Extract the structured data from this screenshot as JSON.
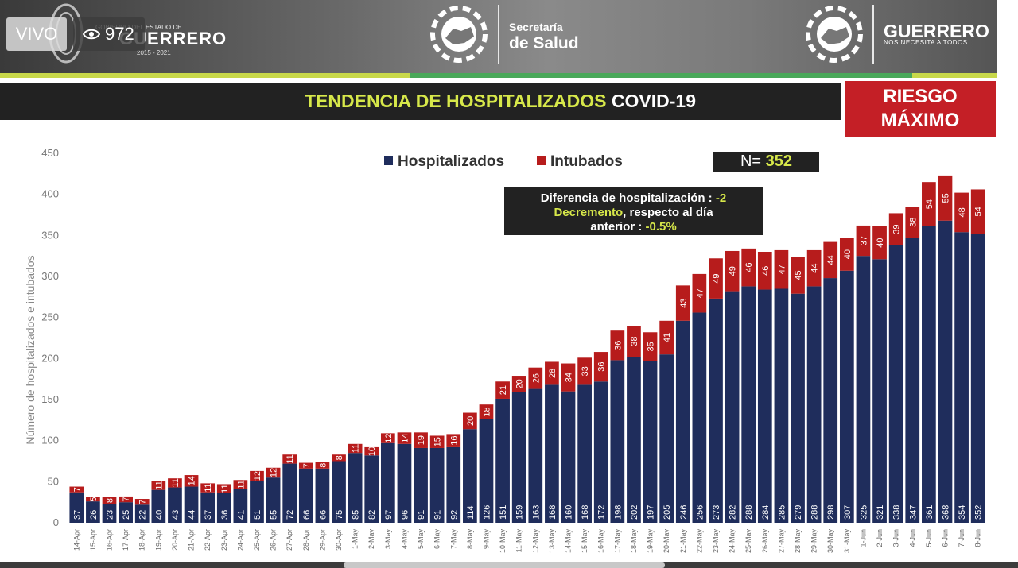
{
  "stream": {
    "live_label": "VIVO",
    "viewers": "972"
  },
  "header": {
    "gov_small": "GOBIERNO DEL ESTADO DE",
    "gov_name": "GUERRERO",
    "gov_years": "2015 - 2021",
    "secretaria_line1": "Secretaría",
    "secretaria_line2": "de Salud",
    "brand_name": "GUERRERO",
    "brand_tagline": "NOS NECESITA A TODOS"
  },
  "title": {
    "highlight": "TENDENCIA DE HOSPITALIZADOS",
    "rest": "COVID-19"
  },
  "risk": {
    "line1": "RIESGO",
    "line2": "MÁXIMO"
  },
  "summary": {
    "n_label": "N=",
    "n_value": "352",
    "diff_line1_label": "Diferencia de hospitalización :",
    "diff_line1_value": "-2",
    "diff_line2_highlight": "Decremento",
    "diff_line2_rest": ", respecto al día",
    "diff_line3_label": "anterior :",
    "diff_line3_value": "-0.5%"
  },
  "colors": {
    "hospitalizados": "#1f2d5c",
    "intubados": "#b71c1c",
    "title_highlight": "#d7e84a",
    "risk_bg": "#c41f26"
  },
  "chart_data": {
    "type": "bar",
    "stacked": true,
    "ylabel": "Número de hospitalizados e intubados",
    "ylim": [
      0,
      450
    ],
    "yticks": [
      0,
      50,
      100,
      150,
      200,
      250,
      300,
      350,
      400,
      450
    ],
    "grid": false,
    "legend_position": "top",
    "categories": [
      "14-Apr",
      "15-Apr",
      "16-Apr",
      "17-Apr",
      "18-Apr",
      "19-Apr",
      "20-Apr",
      "21-Apr",
      "22-Apr",
      "23-Apr",
      "24-Apr",
      "25-Apr",
      "26-Apr",
      "27-Apr",
      "28-Apr",
      "29-Apr",
      "30-Apr",
      "1-May",
      "2-May",
      "3-May",
      "4-May",
      "5-May",
      "6-May",
      "7-May",
      "8-May",
      "9-May",
      "10-May",
      "11-May",
      "12-May",
      "13-May",
      "14-May",
      "15-May",
      "16-May",
      "17-May",
      "18-May",
      "19-May",
      "20-May",
      "21-May",
      "22-May",
      "23-May",
      "24-May",
      "25-May",
      "26-May",
      "27-May",
      "28-May",
      "29-May",
      "30-May",
      "31-May",
      "1-Jun",
      "2-Jun",
      "3-Jun",
      "4-Jun",
      "5-Jun",
      "6-Jun",
      "7-Jun",
      "8-Jun"
    ],
    "series": [
      {
        "name": "Hospitalizados",
        "values": [
          37,
          26,
          23,
          25,
          22,
          40,
          43,
          44,
          37,
          36,
          41,
          51,
          55,
          72,
          66,
          66,
          75,
          85,
          82,
          97,
          96,
          91,
          91,
          92,
          114,
          126,
          151,
          159,
          163,
          168,
          160,
          168,
          172,
          198,
          202,
          197,
          205,
          246,
          256,
          273,
          282,
          288,
          284,
          285,
          279,
          288,
          298,
          307,
          325,
          321,
          338,
          347,
          361,
          368,
          354,
          352
        ]
      },
      {
        "name": "Intubados",
        "values": [
          7,
          5,
          8,
          7,
          7,
          11,
          11,
          14,
          11,
          11,
          11,
          12,
          12,
          11,
          7,
          8,
          8,
          11,
          10,
          12,
          14,
          19,
          15,
          16,
          20,
          18,
          21,
          20,
          26,
          28,
          34,
          33,
          36,
          36,
          38,
          35,
          41,
          43,
          47,
          49,
          49,
          46,
          46,
          47,
          45,
          44,
          44,
          40,
          37,
          40,
          39,
          38,
          54,
          55,
          48,
          54
        ]
      }
    ]
  }
}
